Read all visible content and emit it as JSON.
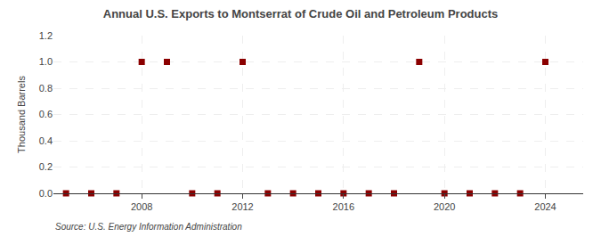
{
  "chart_data": {
    "type": "scatter",
    "title": "Annual U.S. Exports to Montserrat of Crude Oil and Petroleum Products",
    "ylabel": "Thousand Barrels",
    "annotations": [
      "Source: U.S. Energy Information Administration"
    ],
    "x": [
      2005,
      2006,
      2007,
      2008,
      2009,
      2010,
      2011,
      2012,
      2013,
      2014,
      2015,
      2016,
      2017,
      2018,
      2019,
      2020,
      2021,
      2022,
      2023,
      2024
    ],
    "values": [
      0,
      0,
      0,
      1,
      1,
      0,
      0,
      1,
      0,
      0,
      0,
      0,
      0,
      0,
      1,
      0,
      0,
      0,
      0,
      1
    ],
    "color": "#8b0000",
    "marker": "square",
    "xlim": [
      2004.5,
      2025.5
    ],
    "xticks": [
      2008,
      2012,
      2016,
      2020,
      2024
    ],
    "ylim": [
      0,
      1.2
    ],
    "yticks": [
      {
        "value": 0.0,
        "label": "0.0"
      },
      {
        "value": 0.2,
        "label": "0.2"
      },
      {
        "value": 0.4,
        "label": "0.4"
      },
      {
        "value": 0.6,
        "label": "0.6"
      },
      {
        "value": 0.8,
        "label": "0.8"
      },
      {
        "value": 1.0,
        "label": "1.0"
      },
      {
        "value": 1.2,
        "label": "1.2"
      }
    ],
    "grid": true
  }
}
